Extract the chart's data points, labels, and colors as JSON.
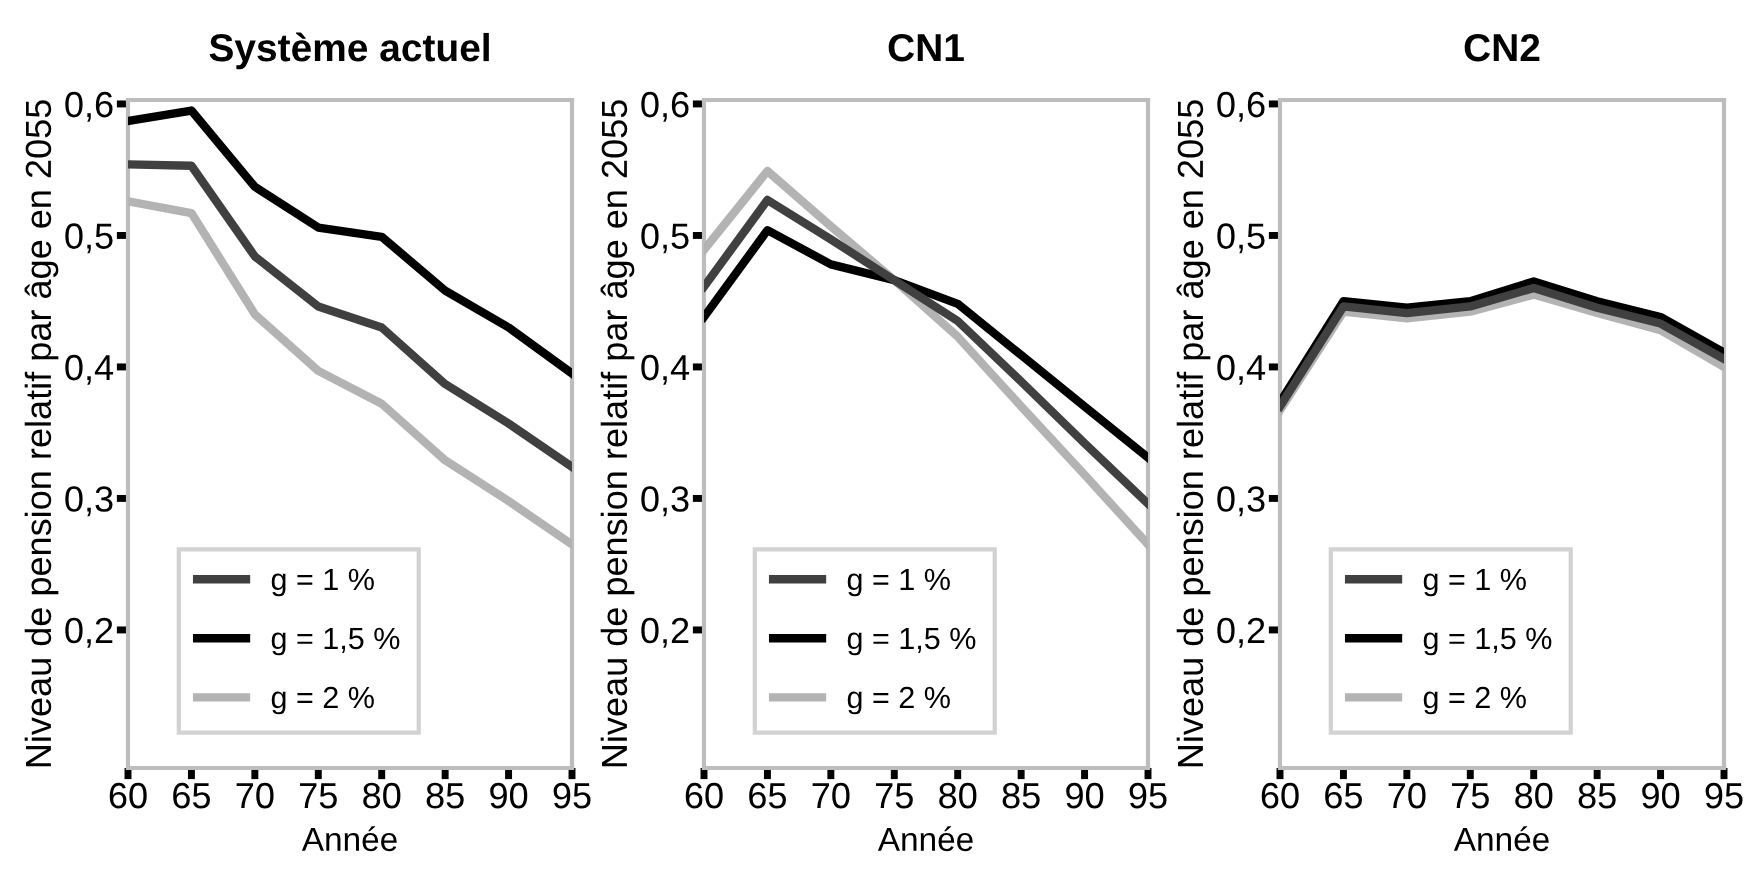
{
  "chart_data": [
    {
      "type": "line",
      "title": "Système actuel",
      "xlabel": "Année",
      "ylabel": "Niveau de pension relatif par âge en 2055",
      "x": [
        60,
        65,
        70,
        75,
        80,
        85,
        90,
        95
      ],
      "xlim": [
        60,
        95
      ],
      "xticks": [
        60,
        65,
        70,
        75,
        80,
        85,
        90,
        95
      ],
      "ylim": [
        0.095,
        0.603
      ],
      "yticks": [
        {
          "value": 0.2,
          "label": "0,2"
        },
        {
          "value": 0.3,
          "label": "0,3"
        },
        {
          "value": 0.4,
          "label": "0,4"
        },
        {
          "value": 0.5,
          "label": "0,5"
        },
        {
          "value": 0.6,
          "label": "0,6"
        }
      ],
      "legend": "bottom left",
      "grid": false,
      "series": [
        {
          "name": "g = 1 %",
          "color": "#404040",
          "values": [
            0.554,
            0.553,
            0.484,
            0.446,
            0.43,
            0.387,
            0.357,
            0.324
          ]
        },
        {
          "name": "g = 1,5 %",
          "color": "#000000",
          "values": [
            0.587,
            0.595,
            0.537,
            0.506,
            0.499,
            0.458,
            0.43,
            0.395
          ]
        },
        {
          "name": "g = 2 %",
          "color": "#b3b3b3",
          "values": [
            0.526,
            0.517,
            0.44,
            0.397,
            0.372,
            0.329,
            0.298,
            0.265
          ]
        }
      ]
    },
    {
      "type": "line",
      "title": "CN1",
      "xlabel": "Année",
      "ylabel": "Niveau de pension relatif par âge en 2055",
      "x": [
        60,
        65,
        70,
        75,
        80,
        85,
        90,
        95
      ],
      "xlim": [
        60,
        95
      ],
      "xticks": [
        60,
        65,
        70,
        75,
        80,
        85,
        90,
        95
      ],
      "ylim": [
        0.095,
        0.603
      ],
      "yticks": [
        {
          "value": 0.2,
          "label": "0,2"
        },
        {
          "value": 0.3,
          "label": "0,3"
        },
        {
          "value": 0.4,
          "label": "0,4"
        },
        {
          "value": 0.5,
          "label": "0,5"
        },
        {
          "value": 0.6,
          "label": "0,6"
        }
      ],
      "legend": "bottom left",
      "grid": false,
      "series": [
        {
          "name": "g = 1 %",
          "color": "#404040",
          "values": [
            0.461,
            0.527,
            0.497,
            0.466,
            0.435,
            0.389,
            0.342,
            0.296
          ]
        },
        {
          "name": "g = 1,5 %",
          "color": "#000000",
          "values": [
            0.438,
            0.504,
            0.478,
            0.466,
            0.448,
            0.409,
            0.37,
            0.331
          ]
        },
        {
          "name": "g = 2 %",
          "color": "#b3b3b3",
          "values": [
            0.489,
            0.549,
            0.507,
            0.466,
            0.423,
            0.37,
            0.318,
            0.265
          ]
        }
      ]
    },
    {
      "type": "line",
      "title": "CN2",
      "xlabel": "Année",
      "ylabel": "Niveau de pension relatif par âge en 2055",
      "x": [
        60,
        65,
        70,
        75,
        80,
        85,
        90,
        95
      ],
      "xlim": [
        60,
        95
      ],
      "xticks": [
        60,
        65,
        70,
        75,
        80,
        85,
        90,
        95
      ],
      "ylim": [
        0.095,
        0.603
      ],
      "yticks": [
        {
          "value": 0.2,
          "label": "0,2"
        },
        {
          "value": 0.3,
          "label": "0,3"
        },
        {
          "value": 0.4,
          "label": "0,4"
        },
        {
          "value": 0.5,
          "label": "0,5"
        },
        {
          "value": 0.6,
          "label": "0,6"
        }
      ],
      "legend": "bottom left",
      "grid": false,
      "series": [
        {
          "name": "g = 1 %",
          "color": "#404040",
          "values": [
            0.37,
            0.446,
            0.441,
            0.446,
            0.46,
            0.445,
            0.433,
            0.406
          ]
        },
        {
          "name": "g = 1,5 %",
          "color": "#000000",
          "values": [
            0.373,
            0.45,
            0.445,
            0.45,
            0.465,
            0.45,
            0.438,
            0.411
          ]
        },
        {
          "name": "g = 2 %",
          "color": "#b3b3b3",
          "values": [
            0.367,
            0.442,
            0.437,
            0.442,
            0.455,
            0.441,
            0.428,
            0.4
          ]
        }
      ]
    }
  ]
}
